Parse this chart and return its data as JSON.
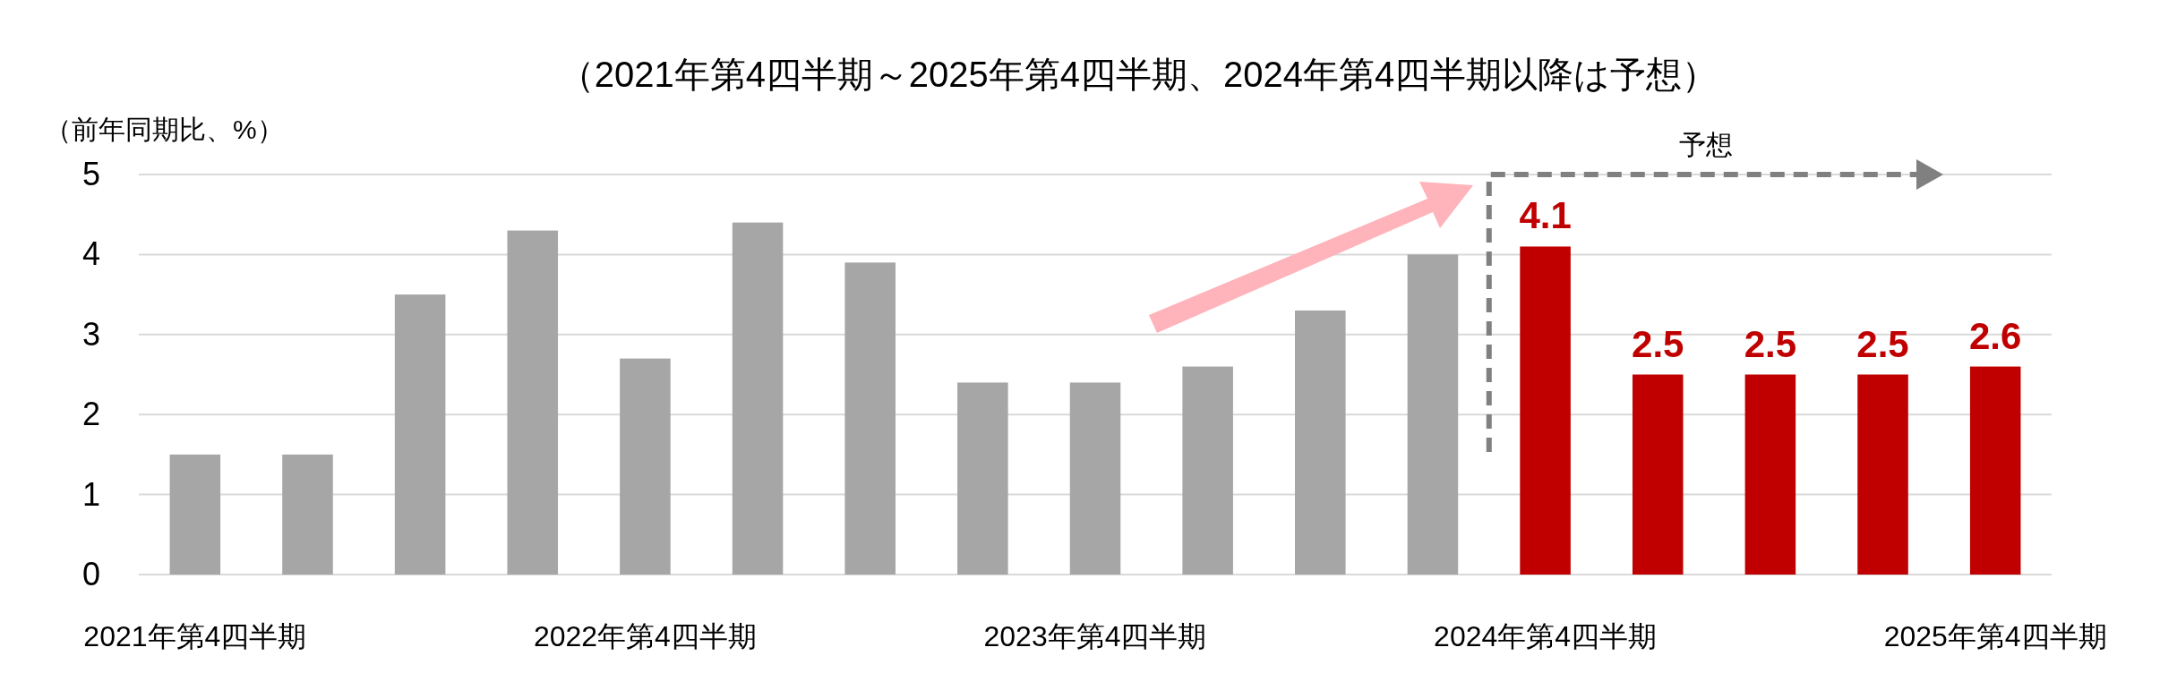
{
  "chart_data": {
    "type": "bar",
    "title": "（2021年第4四半期～2025年第4四半期、2024年第4四半期以降は予想）",
    "ylabel": "（前年同期比、%）",
    "categories": [
      "2021年第4四半期",
      null,
      null,
      null,
      "2022年第4四半期",
      null,
      null,
      null,
      "2023年第4四半期",
      null,
      null,
      null,
      "2024年第4四半期",
      null,
      null,
      null,
      "2025年第4四半期"
    ],
    "values": [
      1.5,
      1.5,
      3.5,
      4.3,
      2.7,
      4.4,
      3.9,
      2.4,
      2.4,
      2.6,
      3.3,
      4.0,
      4.1,
      2.5,
      2.5,
      2.5,
      2.6
    ],
    "colors": [
      "#a6a6a6",
      "#a6a6a6",
      "#a6a6a6",
      "#a6a6a6",
      "#a6a6a6",
      "#a6a6a6",
      "#a6a6a6",
      "#a6a6a6",
      "#a6a6a6",
      "#a6a6a6",
      "#a6a6a6",
      "#a6a6a6",
      "#c00000",
      "#c00000",
      "#c00000",
      "#c00000",
      "#c00000"
    ],
    "value_labels": [
      null,
      null,
      null,
      null,
      null,
      null,
      null,
      null,
      null,
      null,
      null,
      null,
      "4.1",
      "2.5",
      "2.5",
      "2.5",
      "2.6"
    ],
    "ylim": [
      0,
      5
    ],
    "yticks": [
      0,
      1,
      2,
      3,
      4,
      5
    ],
    "grid": "y",
    "ref_lines": [
      {
        "axis": "x",
        "value": "2024年第4四半期",
        "label": "予想",
        "color": "#808080",
        "line_style": "dashed"
      }
    ]
  }
}
